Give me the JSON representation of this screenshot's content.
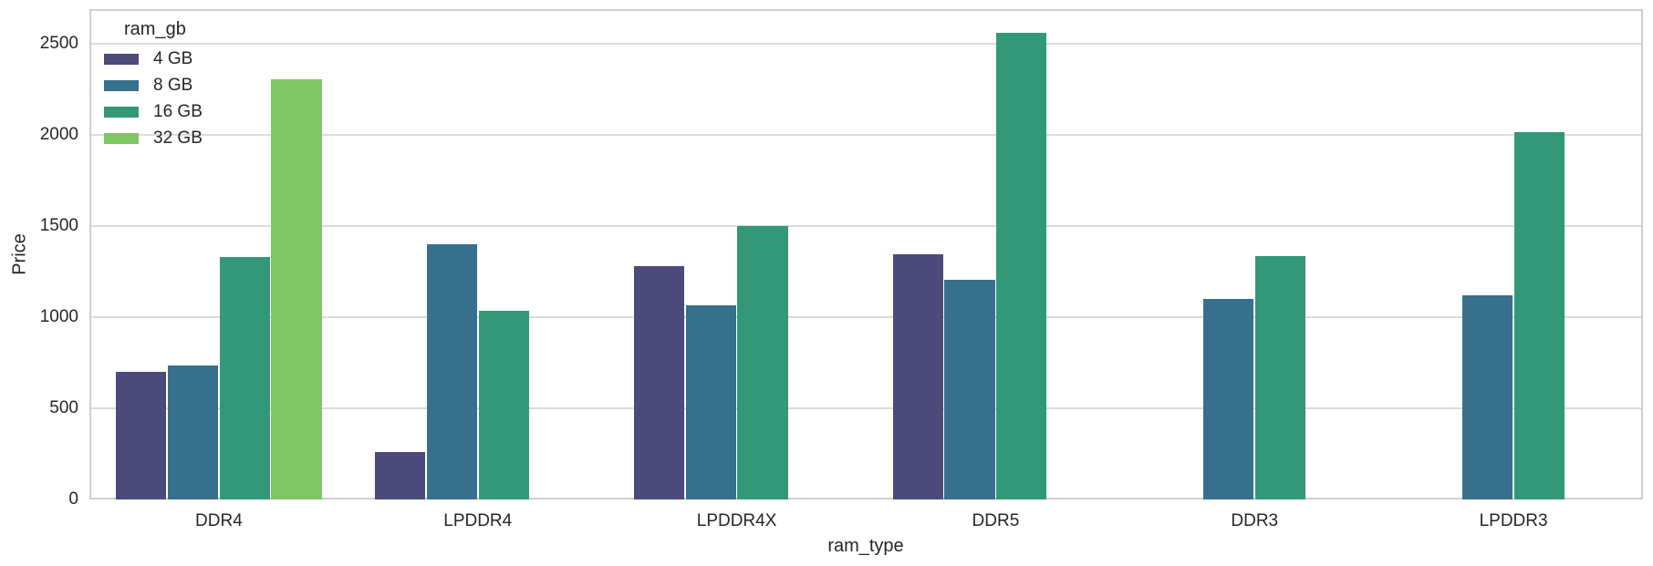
{
  "chart_data": {
    "type": "bar",
    "title": "",
    "xlabel": "ram_type",
    "ylabel": "Price",
    "legend_title": "ram_gb",
    "legend_position": "upper-left",
    "grid": "horizontal-only",
    "categories": [
      "DDR4",
      "LPDDR4",
      "LPDDR4X",
      "DDR5",
      "DDR3",
      "LPDDR3"
    ],
    "series": [
      {
        "name": "4 GB",
        "color": "#4b4a7b",
        "values": [
          700,
          260,
          1280,
          1345,
          null,
          null
        ]
      },
      {
        "name": "8 GB",
        "color": "#36708c",
        "values": [
          735,
          1400,
          1065,
          1205,
          1100,
          1118
        ]
      },
      {
        "name": "16 GB",
        "color": "#339878",
        "values": [
          1330,
          1037,
          1500,
          2560,
          1335,
          2015
        ]
      },
      {
        "name": "32 GB",
        "color": "#7fc765",
        "values": [
          2305,
          null,
          null,
          null,
          null,
          null
        ]
      }
    ],
    "yticks": [
      0,
      500,
      1000,
      1500,
      2000,
      2500
    ],
    "ylim": [
      0,
      2690
    ],
    "colors": {
      "background": "#ffffff",
      "gridline": "#dcdcdc",
      "spine": "#cfcfcf",
      "text": "#262626"
    }
  }
}
